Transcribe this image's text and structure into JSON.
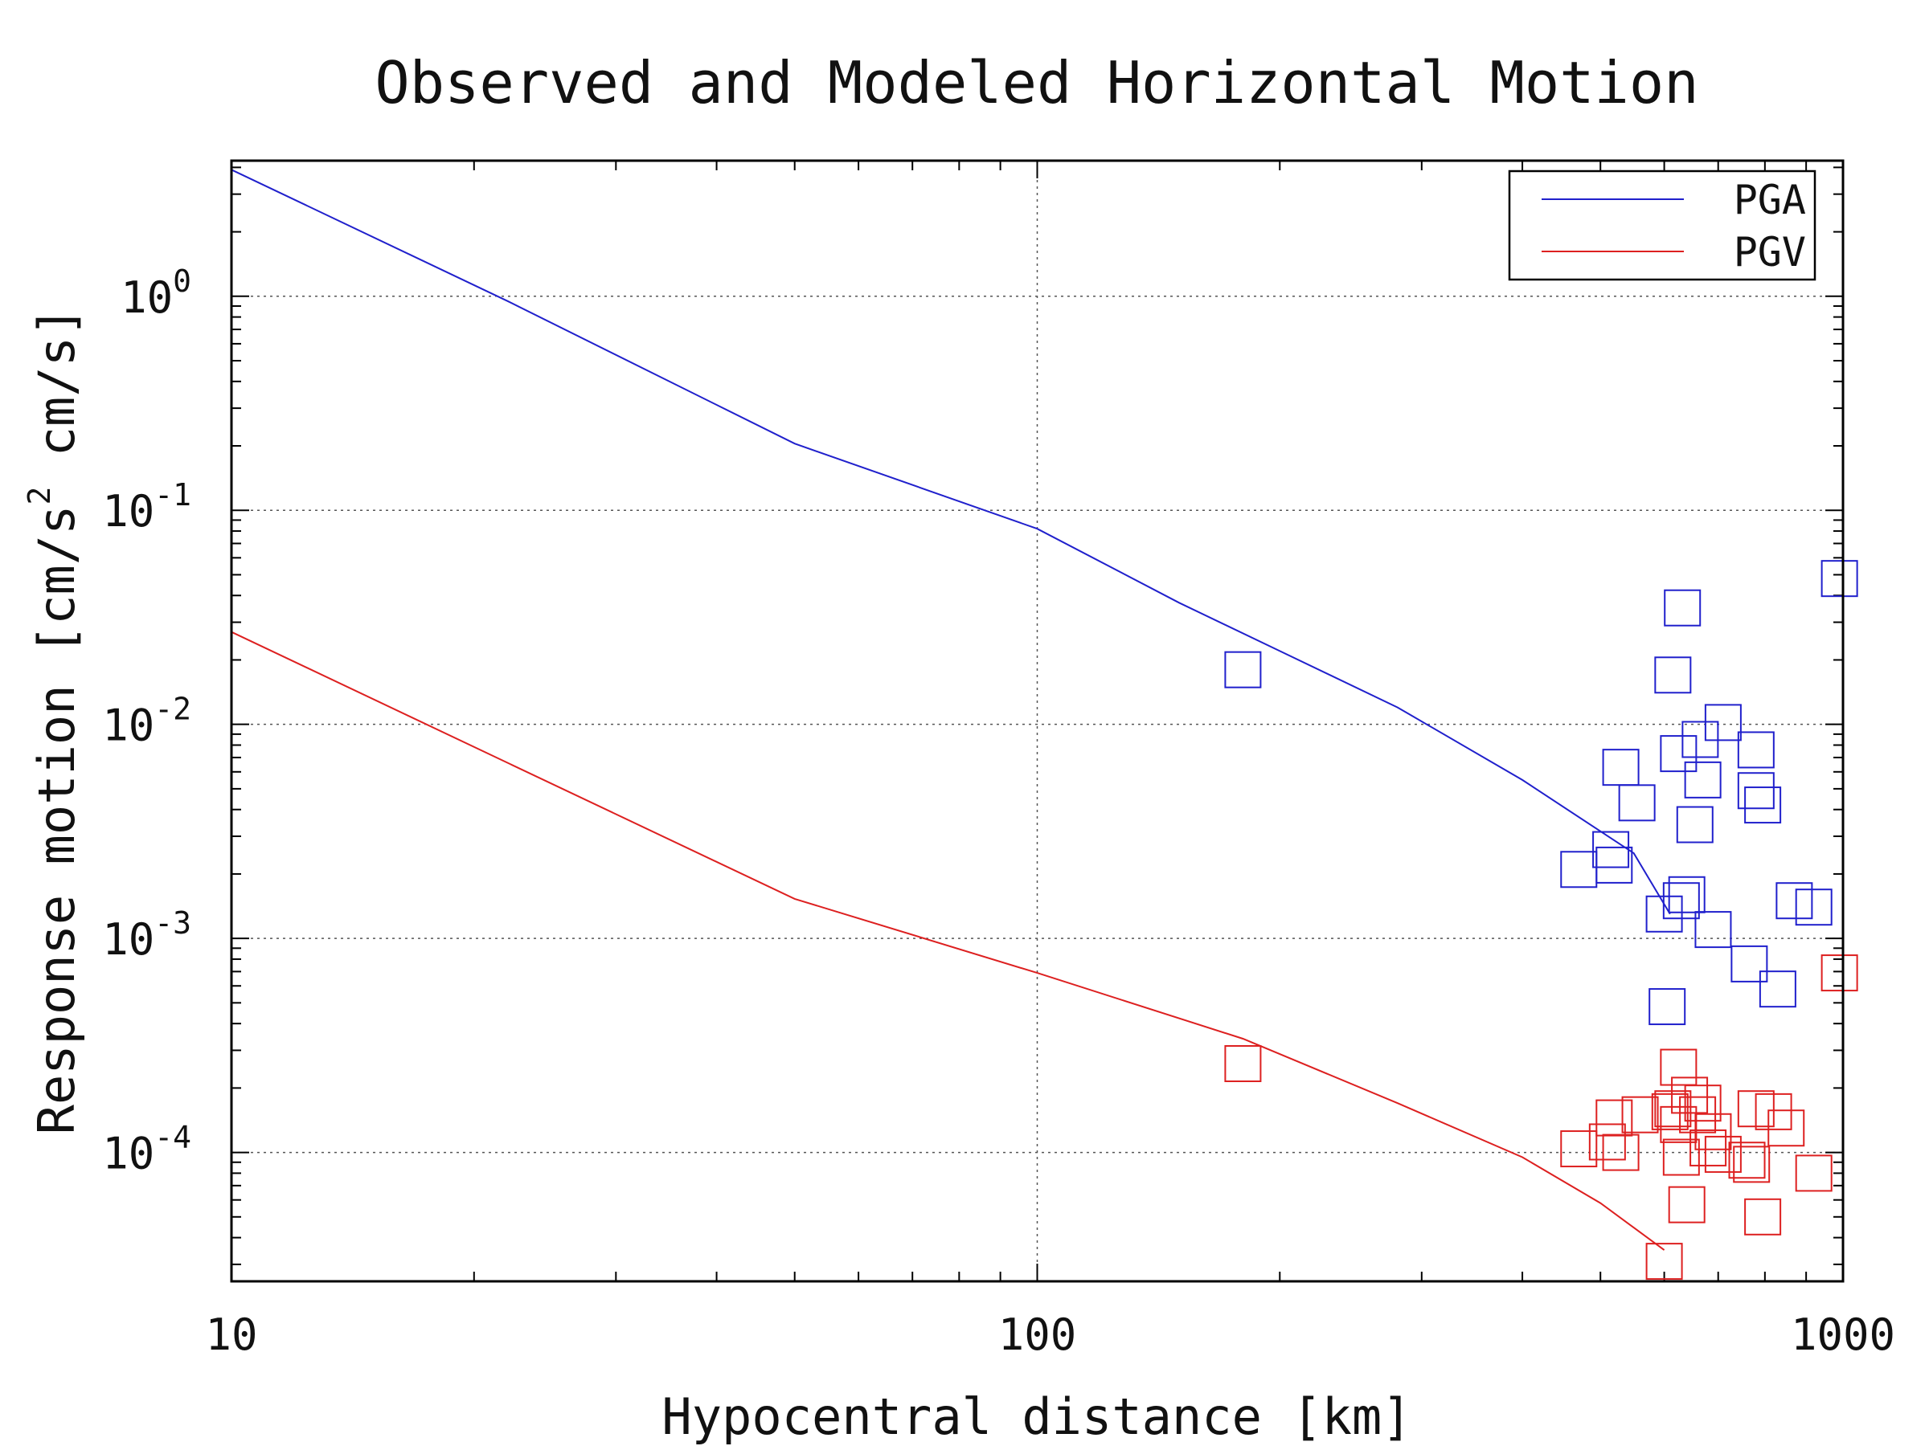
{
  "chart_data": {
    "type": "scatter",
    "title": "Observed and Modeled Horizontal Motion",
    "xlabel": "Hypocentral distance [km]",
    "ylabel": {
      "prefix": "Response motion [cm/s",
      "superscript": "2",
      "suffix": " cm/s]"
    },
    "x_scale": "log",
    "y_scale": "log",
    "xlim": [
      10,
      1000
    ],
    "ylim": [
      2.5e-05,
      4.3
    ],
    "x_ticks": [
      {
        "value": 10,
        "label": "10"
      },
      {
        "value": 100,
        "label": "100"
      },
      {
        "value": 1000,
        "label": "1000"
      }
    ],
    "y_ticks": [
      {
        "value": 1,
        "base": "10",
        "exp": "0"
      },
      {
        "value": 0.1,
        "base": "10",
        "exp": "-1"
      },
      {
        "value": 0.01,
        "base": "10",
        "exp": "-2"
      },
      {
        "value": 0.001,
        "base": "10",
        "exp": "-3"
      },
      {
        "value": 0.0001,
        "base": "10",
        "exp": "-4"
      }
    ],
    "grid": true,
    "legend_position": "top-right",
    "series": [
      {
        "name": "PGA",
        "color": "#2020cc",
        "line": [
          [
            10,
            3.9
          ],
          [
            22,
            0.95
          ],
          [
            50,
            0.205
          ],
          [
            100,
            0.082
          ],
          [
            150,
            0.037
          ],
          [
            200,
            0.022
          ],
          [
            280,
            0.012
          ],
          [
            400,
            0.0055
          ],
          [
            550,
            0.0025
          ],
          [
            610,
            0.0013
          ]
        ],
        "points": [
          [
            180,
            0.018
          ],
          [
            470,
            0.0021
          ],
          [
            515,
            0.0026
          ],
          [
            520,
            0.0022
          ],
          [
            530,
            0.0063
          ],
          [
            555,
            0.0043
          ],
          [
            600,
            0.0013
          ],
          [
            605,
            0.00048
          ],
          [
            615,
            0.017
          ],
          [
            625,
            0.0073
          ],
          [
            630,
            0.0015
          ],
          [
            632,
            0.035
          ],
          [
            640,
            0.0016
          ],
          [
            655,
            0.0034
          ],
          [
            665,
            0.0085
          ],
          [
            670,
            0.0055
          ],
          [
            690,
            0.0011
          ],
          [
            710,
            0.0102
          ],
          [
            765,
            0.00076
          ],
          [
            780,
            0.0076
          ],
          [
            780,
            0.0049
          ],
          [
            795,
            0.0042
          ],
          [
            830,
            0.00058
          ],
          [
            870,
            0.0015
          ],
          [
            920,
            0.0014
          ],
          [
            990,
            0.048
          ]
        ]
      },
      {
        "name": "PGV",
        "color": "#dd2020",
        "line": [
          [
            10,
            0.027
          ],
          [
            50,
            0.00153
          ],
          [
            100,
            0.00069
          ],
          [
            180,
            0.00034
          ],
          [
            280,
            0.00017
          ],
          [
            400,
            9.5e-05
          ],
          [
            500,
            5.8e-05
          ],
          [
            600,
            3.5e-05
          ]
        ],
        "points": [
          [
            180,
            0.00026
          ],
          [
            470,
            0.000104
          ],
          [
            510,
            0.000112
          ],
          [
            520,
            0.000145
          ],
          [
            530,
            0.0001
          ],
          [
            560,
            0.00015
          ],
          [
            600,
            3.1e-05
          ],
          [
            610,
            0.000155
          ],
          [
            615,
            0.00016
          ],
          [
            625,
            0.00025
          ],
          [
            625,
            0.000135
          ],
          [
            630,
            9.5e-05
          ],
          [
            640,
            5.7e-05
          ],
          [
            645,
            0.000185
          ],
          [
            660,
            0.00015
          ],
          [
            670,
            0.00017
          ],
          [
            680,
            0.000105
          ],
          [
            690,
            0.000125
          ],
          [
            710,
            9.8e-05
          ],
          [
            760,
            9.2e-05
          ],
          [
            770,
            8.8e-05
          ],
          [
            780,
            0.00016
          ],
          [
            795,
            5e-05
          ],
          [
            820,
            0.000155
          ],
          [
            850,
            0.00013
          ],
          [
            920,
            8e-05
          ],
          [
            990,
            0.00069
          ]
        ]
      }
    ]
  }
}
